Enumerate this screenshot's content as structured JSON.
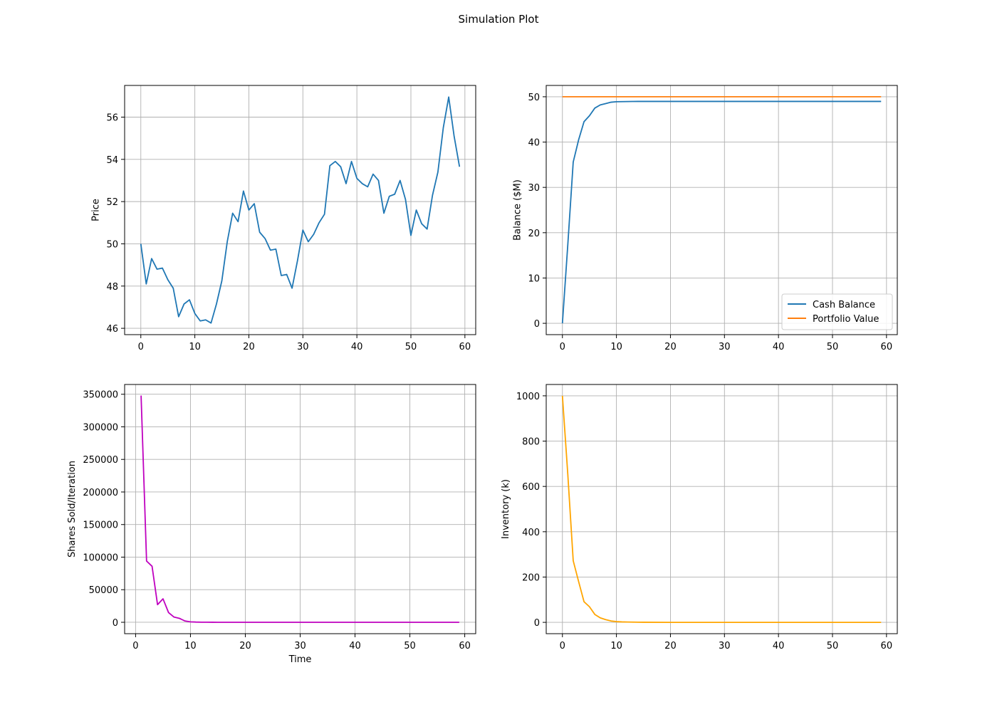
{
  "figure": {
    "title": "Simulation Plot"
  },
  "chart_data": [
    {
      "type": "line",
      "title": "",
      "xlabel": "",
      "ylabel": "Price",
      "xlim": [
        -3,
        62
      ],
      "ylim": [
        45.7,
        57.5
      ],
      "xticks": [
        0,
        10,
        20,
        30,
        40,
        50,
        60
      ],
      "yticks": [
        46,
        48,
        50,
        52,
        54,
        56
      ],
      "grid": true,
      "series": [
        {
          "color": "#1f77b4",
          "x": [
            0,
            1,
            2,
            3,
            4,
            5,
            6,
            7,
            8,
            9,
            10,
            11,
            12,
            13,
            14,
            15,
            16,
            17,
            18,
            19,
            20,
            21,
            22,
            23,
            24,
            25,
            26,
            27,
            28,
            29,
            30,
            31,
            32,
            33,
            34,
            35,
            36,
            37,
            38,
            39,
            40,
            41,
            42,
            43,
            44,
            45,
            46,
            47,
            48,
            49,
            50,
            51,
            52,
            53,
            54,
            55,
            56,
            57,
            58,
            59
          ],
          "values": [
            50.0,
            48.1,
            49.3,
            48.8,
            48.85,
            48.3,
            47.9,
            46.55,
            47.15,
            47.35,
            46.7,
            46.35,
            46.4,
            46.25,
            47.15,
            48.25,
            50.1,
            51.45,
            51.05,
            52.5,
            51.6,
            51.9,
            50.55,
            50.25,
            49.7,
            49.75,
            48.5,
            48.55,
            47.9,
            49.2,
            50.65,
            50.1,
            50.45,
            51.0,
            51.4,
            53.7,
            53.9,
            53.65,
            52.85,
            53.9,
            53.1,
            52.85,
            52.7,
            53.3,
            53.0,
            51.45,
            52.25,
            52.35,
            53.0,
            52.1,
            50.4,
            51.6,
            50.95,
            50.7,
            52.3,
            53.4,
            55.5,
            56.95,
            55.1,
            53.65
          ]
        }
      ]
    },
    {
      "type": "line",
      "title": "",
      "xlabel": "",
      "ylabel": "Balance ($M)",
      "xlim": [
        -3,
        62
      ],
      "ylim": [
        -2.5,
        52.5
      ],
      "xticks": [
        0,
        10,
        20,
        30,
        40,
        50,
        60
      ],
      "yticks": [
        0,
        10,
        20,
        30,
        40,
        50
      ],
      "grid": true,
      "legend": "lower right",
      "series": [
        {
          "name": "Cash Balance",
          "color": "#1f77b4",
          "x": [
            0,
            1,
            2,
            3,
            4,
            5,
            6,
            7,
            8,
            9,
            10,
            11,
            12,
            13,
            14,
            15,
            20,
            30,
            40,
            50,
            59
          ],
          "values": [
            0,
            17.4,
            35.6,
            40.5,
            44.5,
            45.8,
            47.5,
            48.2,
            48.5,
            48.8,
            48.9,
            48.93,
            48.95,
            48.96,
            48.97,
            48.97,
            48.97,
            48.97,
            48.97,
            48.97,
            48.97
          ]
        },
        {
          "name": "Portfolio Value",
          "color": "#ff7f0e",
          "x": [
            0,
            59
          ],
          "values": [
            50,
            50
          ]
        }
      ]
    },
    {
      "type": "line",
      "title": "",
      "xlabel": "Time",
      "ylabel": "Shares Sold/Iteration",
      "xlim": [
        -2,
        62
      ],
      "ylim": [
        -17500,
        365000
      ],
      "xticks": [
        0,
        10,
        20,
        30,
        40,
        50,
        60
      ],
      "yticks": [
        0,
        50000,
        100000,
        150000,
        200000,
        250000,
        300000,
        350000
      ],
      "grid": true,
      "series": [
        {
          "color": "#bf00bf",
          "x": [
            1,
            2,
            3,
            4,
            5,
            6,
            7,
            8,
            9,
            10,
            11,
            12,
            13,
            14,
            15,
            20,
            30,
            40,
            50,
            59
          ],
          "values": [
            348000,
            94000,
            86000,
            27000,
            36000,
            15000,
            8000,
            6000,
            2000,
            700,
            300,
            150,
            80,
            40,
            20,
            0,
            0,
            0,
            0,
            0
          ]
        }
      ]
    },
    {
      "type": "line",
      "title": "",
      "xlabel": "",
      "ylabel": "Inventory (k)",
      "xlim": [
        -3,
        62
      ],
      "ylim": [
        -50,
        1050
      ],
      "xticks": [
        0,
        10,
        20,
        30,
        40,
        50,
        60
      ],
      "yticks": [
        0,
        200,
        400,
        600,
        800,
        1000
      ],
      "grid": true,
      "series": [
        {
          "color": "#ffa500",
          "x": [
            0,
            1,
            2,
            3,
            4,
            5,
            6,
            7,
            8,
            9,
            10,
            11,
            12,
            13,
            14,
            15,
            20,
            30,
            40,
            50,
            59
          ],
          "values": [
            1000,
            652,
            272,
            180,
            91,
            69,
            35,
            20,
            12,
            6,
            3.3,
            2,
            1.4,
            1,
            0.6,
            0.4,
            0,
            0,
            0,
            0,
            0
          ]
        }
      ]
    }
  ]
}
